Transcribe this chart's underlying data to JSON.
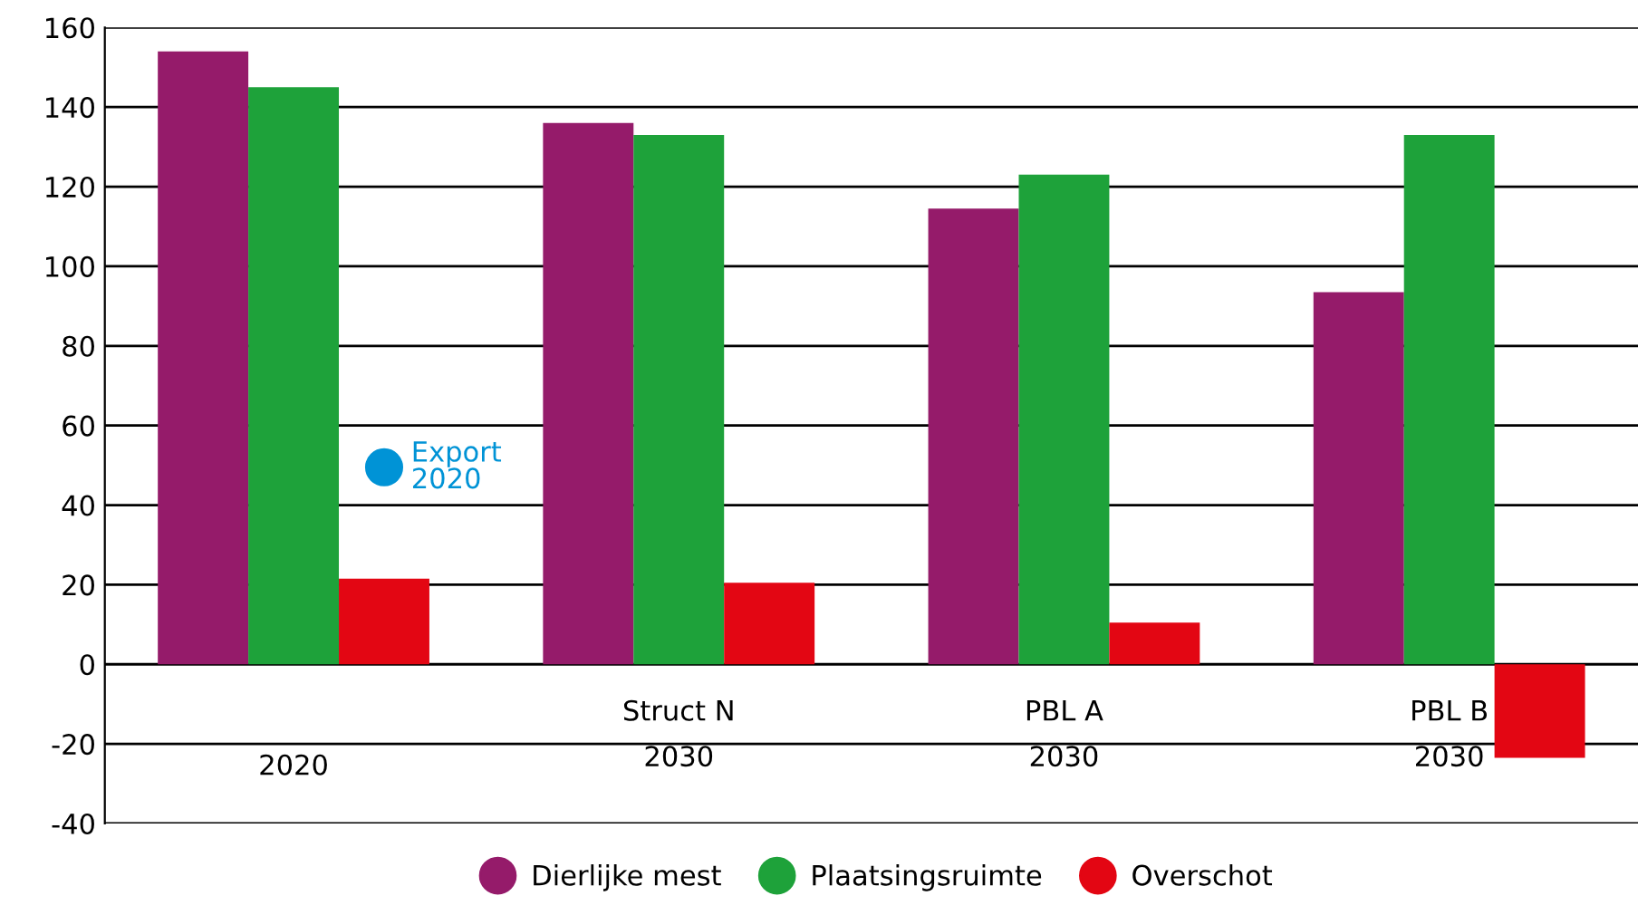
{
  "chart_data": {
    "type": "bar",
    "categories": [
      "2020",
      "Struct N\n2030",
      "PBL A\n2030",
      "PBL B\n2030"
    ],
    "series": [
      {
        "name": "Dierlijke mest",
        "color": "#951b6a",
        "values": [
          154,
          136,
          114.5,
          93.5
        ]
      },
      {
        "name": "Plaatsingsruimte",
        "color": "#1ea23a",
        "values": [
          145,
          133,
          123,
          133
        ]
      },
      {
        "name": "Overschot",
        "color": "#e30613",
        "values": [
          21.5,
          20.5,
          10.5,
          -23.5
        ]
      },
      {
        "name": "Export\n2020",
        "type": "scatter",
        "color": "#0093d6",
        "values": [
          49.5,
          null,
          null,
          null
        ]
      }
    ],
    "ylim": [
      -40,
      160
    ],
    "yticks": [
      -40,
      -20,
      0,
      20,
      40,
      60,
      80,
      100,
      120,
      140,
      160
    ],
    "grid": "y",
    "legend": "bottom",
    "marker": "circle"
  }
}
